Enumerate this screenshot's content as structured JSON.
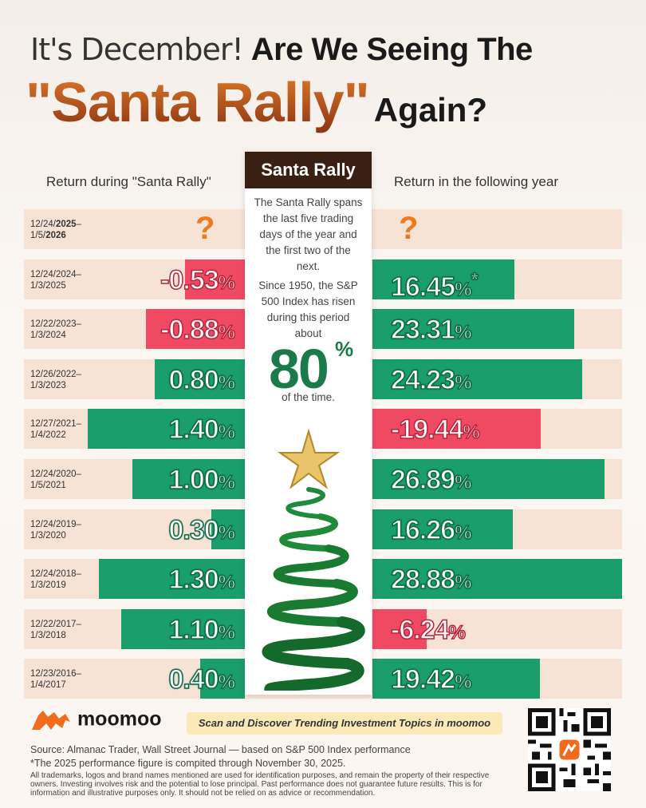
{
  "title": {
    "line1_a": "It's December!",
    "line1_b": "Are We Seeing The",
    "line2_a": "\"Santa Rally\"",
    "line2_b": "Again?"
  },
  "headers": {
    "left": "Return during \"Santa Rally\"",
    "right": "Return in the following year"
  },
  "center_box": {
    "heading": "Santa Rally",
    "para1": "The Santa Rally spans the last five trading days of the year and the first two of the next.",
    "para2": "Since 1950, the S&P 500 Index has risen during this period about",
    "big_number": "80",
    "big_unit": "%",
    "para3": "of the time."
  },
  "unknown_mark": "?",
  "pct_sign": "%",
  "star_mark": "*",
  "chart_data": {
    "type": "bar",
    "categories": [
      "12/24/2025–1/5/2026",
      "12/24/2024–1/3/2025",
      "12/22/2023–1/3/2024",
      "12/26/2022–1/3/2023",
      "12/27/2021–1/4/2022",
      "12/24/2020–1/5/2021",
      "12/24/2019–1/3/2020",
      "12/24/2018–1/3/2019",
      "12/22/2017–1/3/2018",
      "12/23/2016–1/4/2017"
    ],
    "rows": [
      {
        "d1": "12/24/",
        "d1b": "2025",
        "d2": "1/5/",
        "d2b": "2026",
        "rally": null,
        "rally_label": "?",
        "next": null,
        "next_label": "?",
        "note": ""
      },
      {
        "d1": "12/24/2024",
        "d1b": "",
        "d2": "1/3/2025",
        "d2b": "",
        "rally": -0.53,
        "rally_label": "-0.53",
        "next": 16.45,
        "next_label": "16.45",
        "note": "*"
      },
      {
        "d1": "12/22/2023",
        "d1b": "",
        "d2": "1/3/2024",
        "d2b": "",
        "rally": -0.88,
        "rally_label": "-0.88",
        "next": 23.31,
        "next_label": "23.31",
        "note": ""
      },
      {
        "d1": "12/26/2022",
        "d1b": "",
        "d2": "1/3/2023",
        "d2b": "",
        "rally": 0.8,
        "rally_label": "0.80",
        "next": 24.23,
        "next_label": "24.23",
        "note": ""
      },
      {
        "d1": "12/27/2021",
        "d1b": "",
        "d2": "1/4/2022",
        "d2b": "",
        "rally": 1.4,
        "rally_label": "1.40",
        "next": -19.44,
        "next_label": "-19.44",
        "note": ""
      },
      {
        "d1": "12/24/2020",
        "d1b": "",
        "d2": "1/5/2021",
        "d2b": "",
        "rally": 1.0,
        "rally_label": "1.00",
        "next": 26.89,
        "next_label": "26.89",
        "note": ""
      },
      {
        "d1": "12/24/2019",
        "d1b": "",
        "d2": "1/3/2020",
        "d2b": "",
        "rally": 0.3,
        "rally_label": "0.30",
        "next": 16.26,
        "next_label": "16.26",
        "note": ""
      },
      {
        "d1": "12/24/2018",
        "d1b": "",
        "d2": "1/3/2019",
        "d2b": "",
        "rally": 1.3,
        "rally_label": "1.30",
        "next": 28.88,
        "next_label": "28.88",
        "note": ""
      },
      {
        "d1": "12/22/2017",
        "d1b": "",
        "d2": "1/3/2018",
        "d2b": "",
        "rally": 1.1,
        "rally_label": "1.10",
        "next": -6.24,
        "next_label": "-6.24",
        "note": ""
      },
      {
        "d1": "12/23/2016",
        "d1b": "",
        "d2": "1/4/2017",
        "d2b": "",
        "rally": 0.4,
        "rally_label": "0.40",
        "next": 19.42,
        "next_label": "19.42",
        "note": ""
      }
    ],
    "colors": {
      "positive": "#1a9e6b",
      "negative": "#f04a63",
      "row_background": "#f7e3d6"
    }
  },
  "footer": {
    "brand": "moomoo",
    "scan_text": "Scan and Discover Trending Investment Topics in moomoo",
    "source": "Source: Almanac Trader, Wall Street Journal — based on S&P 500 Index performance",
    "note": "*The 2025 performance figure is compited through November 30, 2025.",
    "disclaimer": "All trademarks, logos and brand names mentioned are used for identification purposes, and remain the property of their respective owners. Investing involves risk and the potential to lose principal. Past performance does not guarantee future results. This is for information and illustrative purposes only. It should not be relied on as advice or recommendation."
  },
  "icons": [
    "moomoo-bull-logo-icon",
    "star-icon",
    "qr-code-icon"
  ]
}
